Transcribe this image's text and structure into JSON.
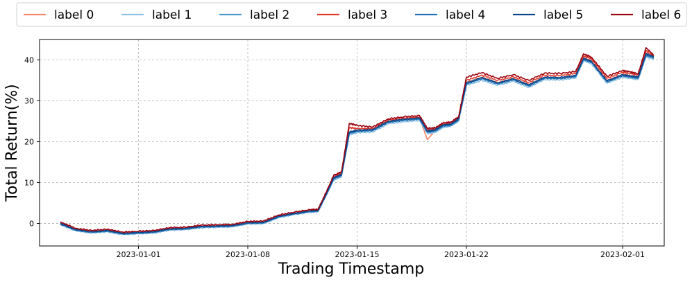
{
  "chart_data": {
    "type": "line",
    "title": "",
    "xlabel": "Trading Timestamp",
    "ylabel": "Total Return(%)",
    "x_ticks": [
      "2023-01-01",
      "2023-01-08",
      "2023-01-15",
      "2023-01-22",
      "2023-02-01"
    ],
    "y_ticks": [
      0,
      10,
      20,
      30,
      40
    ],
    "x_range": [
      "2022-12-25 16:00",
      "2023-02-03 16:00"
    ],
    "ylim": [
      -5.5,
      45
    ],
    "grid": true,
    "legend_position": "top",
    "x": [
      "2022-12-27 00:00",
      "2022-12-28 00:00",
      "2022-12-29 00:00",
      "2022-12-30 00:00",
      "2022-12-31 00:00",
      "2023-01-01 00:00",
      "2023-01-02 00:00",
      "2023-01-03 00:00",
      "2023-01-04 00:00",
      "2023-01-05 00:00",
      "2023-01-06 00:00",
      "2023-01-07 00:00",
      "2023-01-08 00:00",
      "2023-01-09 00:00",
      "2023-01-10 00:00",
      "2023-01-11 00:00",
      "2023-01-12 00:00",
      "2023-01-12 12:00",
      "2023-01-13 00:00",
      "2023-01-13 12:00",
      "2023-01-14 00:00",
      "2023-01-14 12:00",
      "2023-01-15 00:00",
      "2023-01-16 00:00",
      "2023-01-17 00:00",
      "2023-01-18 00:00",
      "2023-01-19 00:00",
      "2023-01-19 12:00",
      "2023-01-20 00:00",
      "2023-01-20 12:00",
      "2023-01-21 00:00",
      "2023-01-21 12:00",
      "2023-01-22 00:00",
      "2023-01-23 00:00",
      "2023-01-24 00:00",
      "2023-01-25 00:00",
      "2023-01-26 00:00",
      "2023-01-27 00:00",
      "2023-01-28 00:00",
      "2023-01-29 00:00",
      "2023-01-29 12:00",
      "2023-01-30 00:00",
      "2023-01-31 00:00",
      "2023-02-01 00:00",
      "2023-02-01 12:00",
      "2023-02-02 00:00",
      "2023-02-02 12:00",
      "2023-02-03 00:00"
    ],
    "series": [
      {
        "name": "label 0",
        "color": "#f4876a",
        "values": [
          0.0,
          -1.5,
          -2.0,
          -1.7,
          -2.4,
          -2.2,
          -2.0,
          -1.3,
          -1.2,
          -0.7,
          -0.6,
          -0.5,
          0.2,
          0.3,
          1.8,
          2.5,
          3.1,
          3.2,
          7.0,
          11.2,
          12.0,
          22.3,
          22.8,
          23.0,
          25.0,
          25.5,
          25.8,
          20.5,
          22.8,
          24.0,
          24.2,
          25.5,
          34.5,
          35.8,
          34.5,
          35.5,
          34.0,
          35.8,
          35.7,
          36.2,
          40.5,
          39.8,
          35.0,
          36.5,
          36.2,
          35.8,
          41.8,
          40.8
        ]
      },
      {
        "name": "label 1",
        "color": "#8fc1e3",
        "values": [
          -0.3,
          -1.8,
          -2.3,
          -2.0,
          -2.7,
          -2.5,
          -2.3,
          -1.6,
          -1.5,
          -1.0,
          -0.9,
          -0.8,
          -0.1,
          0.0,
          1.5,
          2.2,
          2.8,
          2.9,
          6.7,
          10.6,
          11.4,
          21.7,
          22.2,
          22.4,
          24.4,
          24.9,
          25.2,
          22.0,
          22.3,
          23.5,
          23.8,
          25.0,
          33.8,
          35.0,
          33.8,
          34.8,
          33.3,
          35.2,
          35.1,
          35.6,
          39.8,
          39.1,
          34.3,
          35.8,
          35.5,
          35.2,
          40.8,
          40.2
        ]
      },
      {
        "name": "label 2",
        "color": "#4a98c9",
        "values": [
          -0.2,
          -1.7,
          -2.2,
          -1.9,
          -2.6,
          -2.4,
          -2.2,
          -1.5,
          -1.4,
          -0.9,
          -0.8,
          -0.7,
          0.0,
          0.1,
          1.6,
          2.3,
          2.9,
          3.0,
          6.8,
          10.9,
          11.7,
          22.0,
          22.5,
          22.7,
          24.7,
          25.2,
          25.5,
          22.3,
          22.6,
          23.8,
          24.0,
          25.3,
          34.1,
          35.4,
          34.1,
          35.1,
          33.6,
          35.5,
          35.4,
          35.9,
          40.1,
          39.4,
          34.6,
          36.1,
          35.8,
          35.5,
          41.1,
          40.5
        ]
      },
      {
        "name": "label 3",
        "color": "#e03a2c",
        "values": [
          0.2,
          -1.4,
          -1.9,
          -1.6,
          -2.3,
          -2.1,
          -1.9,
          -1.2,
          -1.1,
          -0.6,
          -0.5,
          -0.4,
          0.3,
          0.4,
          1.9,
          2.6,
          3.2,
          3.3,
          7.2,
          11.5,
          12.3,
          23.5,
          23.2,
          23.3,
          25.3,
          25.8,
          26.1,
          23.0,
          23.1,
          24.3,
          24.5,
          25.8,
          35.0,
          36.3,
          35.0,
          35.9,
          34.5,
          36.3,
          36.2,
          36.7,
          41.0,
          40.3,
          35.5,
          37.0,
          36.7,
          36.3,
          42.3,
          41.0
        ]
      },
      {
        "name": "label 4",
        "color": "#2271b5",
        "values": [
          -0.1,
          -1.6,
          -2.1,
          -1.8,
          -2.5,
          -2.3,
          -2.1,
          -1.4,
          -1.3,
          -0.8,
          -0.7,
          -0.6,
          0.1,
          0.2,
          1.7,
          2.4,
          3.0,
          3.1,
          6.9,
          11.0,
          11.8,
          22.2,
          22.6,
          22.8,
          24.8,
          25.3,
          25.6,
          22.4,
          22.7,
          23.9,
          24.1,
          25.4,
          34.2,
          35.5,
          34.2,
          35.2,
          33.7,
          35.6,
          35.5,
          36.0,
          40.2,
          39.5,
          34.7,
          36.2,
          35.9,
          35.6,
          41.2,
          40.6
        ]
      },
      {
        "name": "label 5",
        "color": "#08468c",
        "values": [
          0.0,
          -1.5,
          -2.0,
          -1.7,
          -2.4,
          -2.2,
          -2.0,
          -1.3,
          -1.2,
          -0.7,
          -0.6,
          -0.5,
          0.2,
          0.3,
          1.8,
          2.5,
          3.1,
          3.2,
          7.0,
          11.2,
          12.0,
          22.4,
          22.8,
          23.0,
          25.0,
          25.5,
          25.8,
          22.6,
          22.9,
          24.1,
          24.3,
          25.6,
          34.4,
          35.7,
          34.4,
          35.4,
          33.9,
          35.8,
          35.7,
          36.2,
          40.4,
          39.7,
          34.9,
          36.4,
          36.1,
          35.8,
          41.5,
          40.8
        ]
      },
      {
        "name": "label 6",
        "color": "#99000d",
        "values": [
          0.4,
          -1.2,
          -1.7,
          -1.4,
          -2.1,
          -1.9,
          -1.7,
          -1.0,
          -0.9,
          -0.4,
          -0.3,
          -0.2,
          0.5,
          0.6,
          2.1,
          2.8,
          3.4,
          3.5,
          7.5,
          11.8,
          12.6,
          24.5,
          24.0,
          23.6,
          25.6,
          26.1,
          26.4,
          23.3,
          23.4,
          24.6,
          24.8,
          26.1,
          35.8,
          36.9,
          35.5,
          36.4,
          35.0,
          36.8,
          36.7,
          37.2,
          41.5,
          40.7,
          36.0,
          37.4,
          37.1,
          36.6,
          43.0,
          41.2
        ]
      }
    ]
  }
}
